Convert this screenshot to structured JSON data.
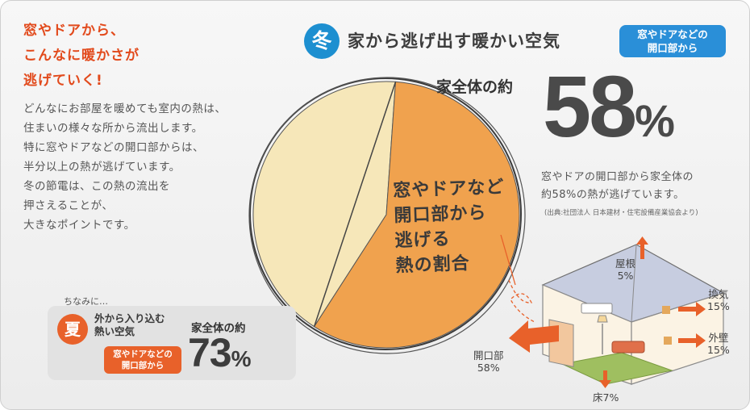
{
  "left": {
    "headline": "窓やドアから、\nこんなに暖かさが\n逃げていく!",
    "body": "どんなにお部屋を暖めても室内の熱は、\n住まいの様々な所から流出します。\n特に窓やドアなどの開口部からは、\n半分以上の熱が逃げています。\n冬の節電は、この熱の流出を\n押さえることが、\n大きなポイントです。"
  },
  "winter": {
    "badge": "冬",
    "title": "家から逃げ出す暖かい空気",
    "tag": "窓やドアなどの\n開口部から",
    "whole_label": "家全体の約",
    "percent": "58",
    "percent_unit": "%",
    "description": "窓やドアの開口部から家全体の\n約58%の熱が逃げています。",
    "source": "(出典:社団法人 日本建材・住宅設備産業協会より)"
  },
  "pie": {
    "label": "窓やドアなど\n開口部から\n逃げる\n熱の割合",
    "opening_share_percent": 58,
    "colors": {
      "opening": "#f0a24e",
      "other": "#f6e7b9"
    }
  },
  "house": {
    "roof": "屋根\n5%",
    "ventilation": "換気\n15%",
    "wall": "外壁\n15%",
    "opening": "開口部\n58%",
    "floor": "床7%"
  },
  "summer": {
    "intro": "ちなみに…",
    "badge": "夏",
    "title": "外から入り込む\n熱い空気",
    "tag": "窓やドアなどの\n開口部から",
    "whole_label": "家全体の約",
    "percent": "73",
    "percent_unit": "%"
  }
}
